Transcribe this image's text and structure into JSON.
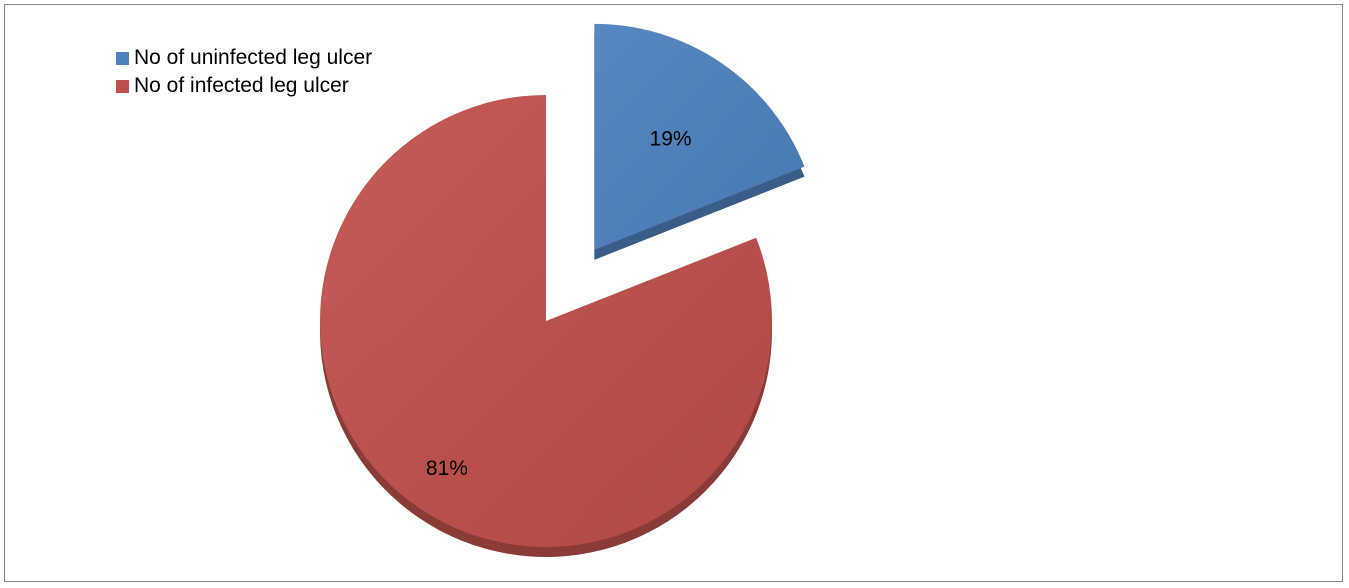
{
  "chart_data": {
    "type": "pie",
    "title": "",
    "slices": [
      {
        "name": "No of uninfected leg ulcer",
        "value": 19,
        "label": "19%",
        "color": "#4F81BD",
        "exploded": true
      },
      {
        "name": "No of infected leg ulcer",
        "value": 81,
        "label": "81%",
        "color": "#C0504D",
        "exploded": false
      }
    ],
    "legend": {
      "placement": "top-left",
      "items": [
        "No of uninfected leg ulcer",
        "No of infected leg ulcer"
      ]
    }
  }
}
